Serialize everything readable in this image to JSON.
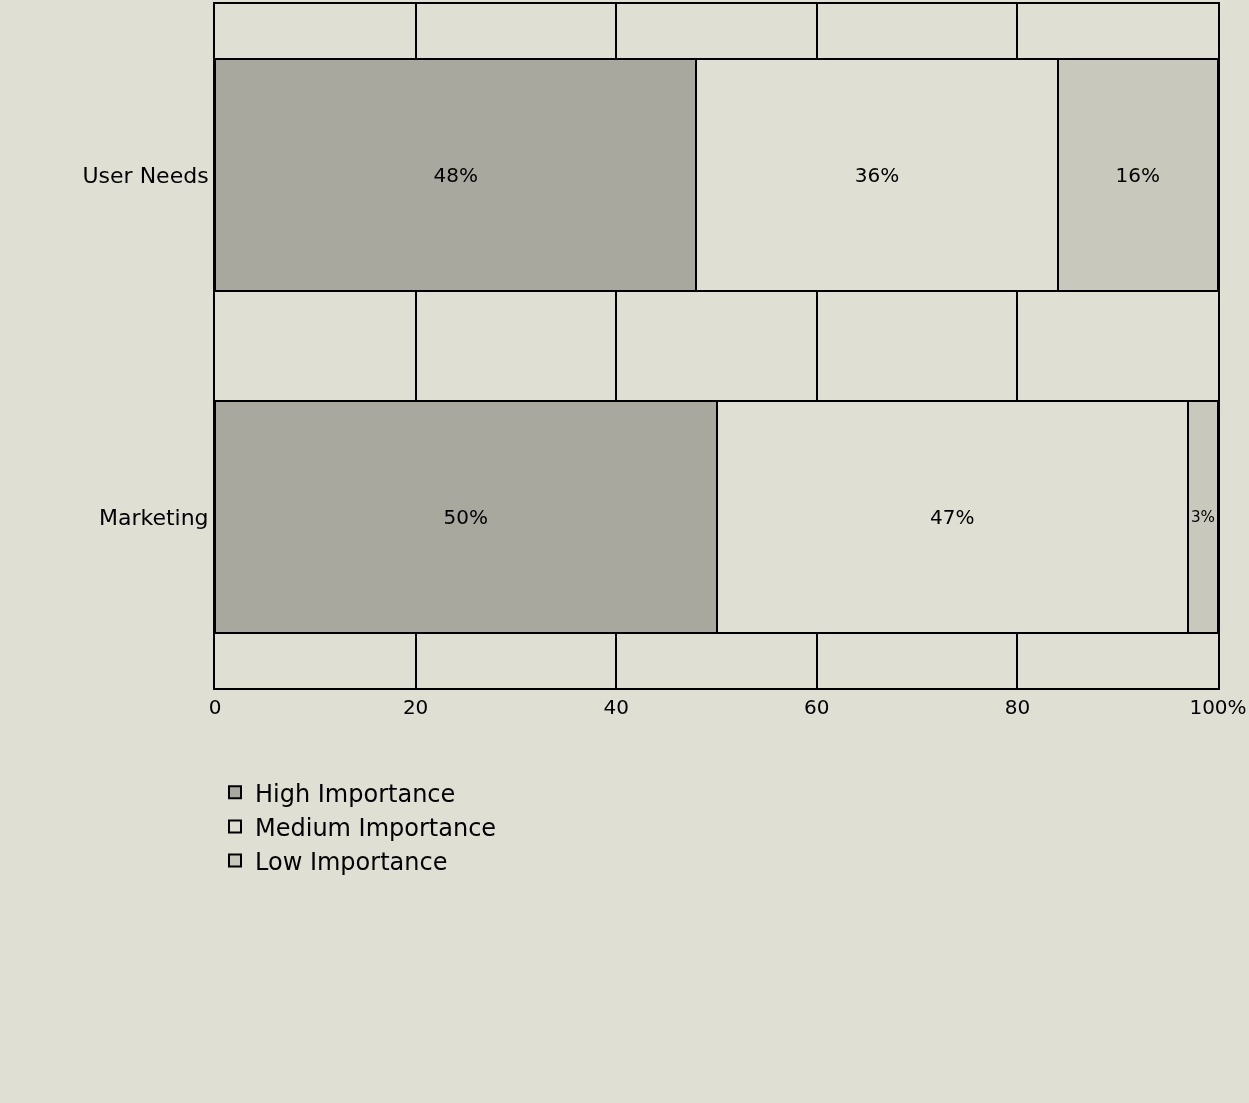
{
  "chart_data": {
    "type": "bar",
    "orientation": "horizontal",
    "stacked": true,
    "categories": [
      "User Needs",
      "Marketing"
    ],
    "series": [
      {
        "name": "High Importance",
        "color": "#a9a89e",
        "values": [
          48,
          50
        ],
        "value_labels": [
          "48%",
          "50%"
        ]
      },
      {
        "name": "Medium Importance",
        "color": "#e0dfd3",
        "values": [
          36,
          47
        ],
        "value_labels": [
          "36%",
          "47%"
        ]
      },
      {
        "name": "Low Importance",
        "color": "#c9c8bc",
        "values": [
          16,
          3
        ],
        "value_labels": [
          "16%",
          "3%"
        ]
      }
    ],
    "xlim": [
      0,
      100
    ],
    "xticks": [
      0,
      20,
      40,
      60,
      80,
      {
        "value": 100,
        "label": "100%"
      }
    ],
    "grid": "x",
    "legend": "bottom"
  }
}
